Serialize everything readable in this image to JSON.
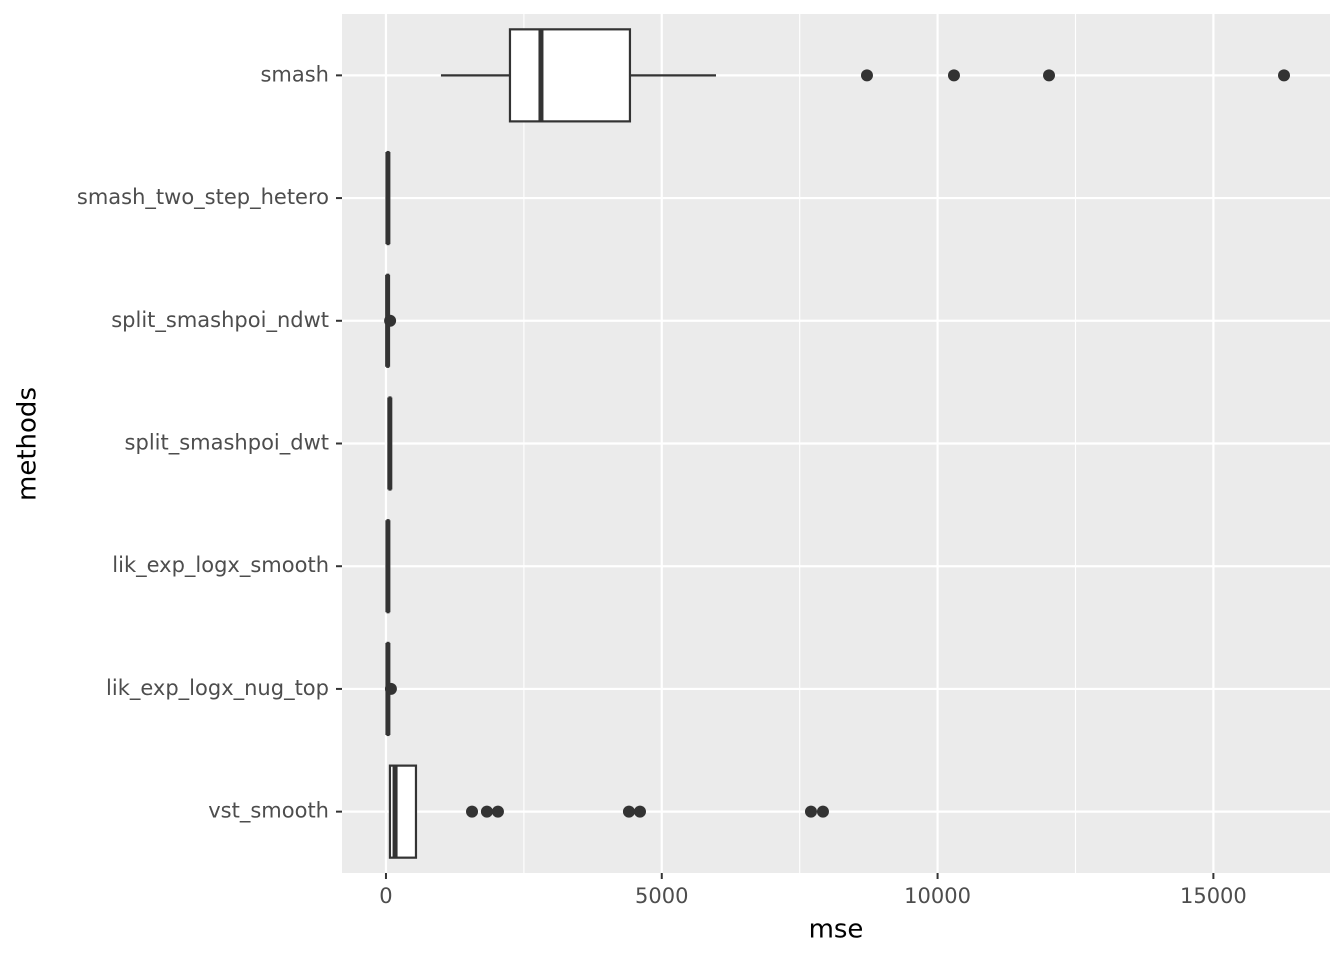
{
  "chart_data": {
    "type": "boxplot",
    "orientation": "horizontal",
    "x_label": "mse",
    "y_label": "methods",
    "categories": [
      "smash",
      "smash_two_step_hetero",
      "split_smashpoi_ndwt",
      "split_smashpoi_dwt",
      "lik_exp_logx_smooth",
      "lik_exp_logx_nug_top",
      "vst_smooth"
    ],
    "boxes": [
      {
        "min": 997,
        "q1": 2248,
        "median": 2810,
        "q3": 4423,
        "max": 5983,
        "outliers": [
          8720,
          10297,
          12020,
          16280
        ]
      },
      {
        "min": 20,
        "q1": 30,
        "median": 35,
        "q3": 45,
        "max": 60,
        "outliers": []
      },
      {
        "min": 15,
        "q1": 25,
        "median": 30,
        "q3": 40,
        "max": 55,
        "outliers": [
          75
        ]
      },
      {
        "min": 55,
        "q1": 65,
        "median": 70,
        "q3": 80,
        "max": 95,
        "outliers": []
      },
      {
        "min": 20,
        "q1": 30,
        "median": 35,
        "q3": 45,
        "max": 60,
        "outliers": []
      },
      {
        "min": 20,
        "q1": 30,
        "median": 35,
        "q3": 45,
        "max": 60,
        "outliers": [
          90
        ]
      },
      {
        "min": 55,
        "q1": 72,
        "median": 165,
        "q3": 544,
        "max": 560,
        "outliers": [
          1560,
          1830,
          2030,
          4405,
          4605,
          7705,
          7922
        ]
      }
    ],
    "xlim": [
      -797,
      17114
    ],
    "xticks": [
      0,
      5000,
      10000,
      15000
    ],
    "xminor_ticks": [
      2500,
      7500,
      12500
    ],
    "grid": true,
    "panel_color": "#ebebeb",
    "box_fill": "#ffffff",
    "line_color": "#333333"
  }
}
